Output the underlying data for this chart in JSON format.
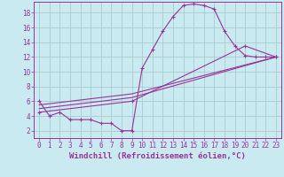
{
  "title": "",
  "xlabel": "Windchill (Refroidissement éolien,°C)",
  "bg_color": "#c8eaf0",
  "line_color": "#993399",
  "marker": "+",
  "xlim": [
    -0.5,
    23.5
  ],
  "ylim": [
    1,
    19.5
  ],
  "xticks": [
    0,
    1,
    2,
    3,
    4,
    5,
    6,
    7,
    8,
    9,
    10,
    11,
    12,
    13,
    14,
    15,
    16,
    17,
    18,
    19,
    20,
    21,
    22,
    23
  ],
  "yticks": [
    2,
    4,
    6,
    8,
    10,
    12,
    14,
    16,
    18
  ],
  "grid_color": "#b0d8e0",
  "line1_x": [
    0,
    1,
    2,
    3,
    4,
    5,
    6,
    7,
    8,
    9,
    10,
    11,
    12,
    13,
    14,
    15,
    16,
    17,
    18,
    19,
    20,
    21,
    22,
    23
  ],
  "line1_y": [
    6,
    4,
    4.5,
    3.5,
    3.5,
    3.5,
    3,
    3,
    2,
    2,
    10.5,
    13,
    15.5,
    17.5,
    19,
    19.2,
    19,
    18.5,
    15.5,
    13.5,
    12.2,
    12,
    12,
    12
  ],
  "line2_x": [
    0,
    9,
    23
  ],
  "line2_y": [
    5.5,
    7,
    12
  ],
  "line3_x": [
    0,
    9,
    23
  ],
  "line3_y": [
    5,
    6.5,
    12
  ],
  "line4_x": [
    0,
    9,
    20,
    23
  ],
  "line4_y": [
    4.5,
    6,
    13.5,
    12
  ],
  "fontsize_xlabel": 6.5,
  "tick_fontsize": 5.5
}
